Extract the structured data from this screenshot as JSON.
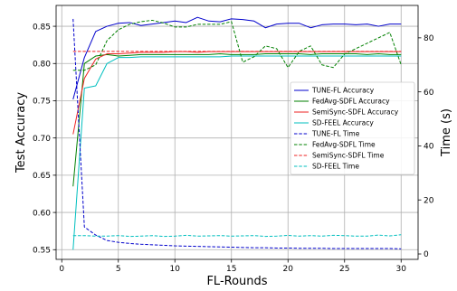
{
  "chart_data": {
    "type": "line",
    "title": "",
    "xlabel": "FL-Rounds",
    "ylabel": "Test Accuracy",
    "y2label": "Time (s)",
    "grid": true,
    "legend_position": "right",
    "xlim": [
      -0.5,
      31.5
    ],
    "ylim": [
      0.537,
      0.878
    ],
    "y2lim": [
      -2,
      92
    ],
    "xticks": [
      0,
      5,
      10,
      15,
      20,
      25,
      30
    ],
    "yticks": [
      0.55,
      0.6,
      0.65,
      0.7,
      0.75,
      0.8,
      0.85
    ],
    "ytick_labels": [
      "0.55",
      "0.60",
      "0.65",
      "0.70",
      "0.75",
      "0.80",
      "0.85"
    ],
    "y2ticks": [
      0,
      20,
      40,
      60,
      80
    ],
    "x": [
      1,
      2,
      3,
      4,
      5,
      6,
      7,
      8,
      9,
      10,
      11,
      12,
      13,
      14,
      15,
      16,
      17,
      18,
      19,
      20,
      21,
      22,
      23,
      24,
      25,
      26,
      27,
      28,
      29,
      30
    ],
    "series": [
      {
        "name": "TUNE-FL Accuracy",
        "axis": "left",
        "color": "#0000cc",
        "dash": "solid",
        "values": [
          0.752,
          0.808,
          0.843,
          0.85,
          0.854,
          0.855,
          0.851,
          0.853,
          0.855,
          0.857,
          0.855,
          0.862,
          0.857,
          0.856,
          0.86,
          0.859,
          0.857,
          0.848,
          0.853,
          0.854,
          0.854,
          0.848,
          0.852,
          0.853,
          0.853,
          0.852,
          0.853,
          0.85,
          0.853,
          0.853
        ]
      },
      {
        "name": "FedAvg-SDFL Accuracy",
        "axis": "left",
        "color": "#008000",
        "dash": "solid",
        "values": [
          0.635,
          0.8,
          0.81,
          0.812,
          0.81,
          0.811,
          0.812,
          0.812,
          0.812,
          0.812,
          0.812,
          0.812,
          0.812,
          0.813,
          0.812,
          0.812,
          0.812,
          0.813,
          0.813,
          0.813,
          0.813,
          0.812,
          0.813,
          0.813,
          0.813,
          0.813,
          0.812,
          0.813,
          0.812,
          0.812
        ]
      },
      {
        "name": "SemiSync-SDFL Accuracy",
        "axis": "left",
        "color": "#ee2222",
        "dash": "solid",
        "values": [
          0.705,
          0.78,
          0.806,
          0.813,
          0.813,
          0.814,
          0.815,
          0.815,
          0.815,
          0.816,
          0.816,
          0.815,
          0.816,
          0.816,
          0.816,
          0.816,
          0.816,
          0.816,
          0.816,
          0.816,
          0.816,
          0.816,
          0.816,
          0.816,
          0.816,
          0.816,
          0.816,
          0.816,
          0.816,
          0.816
        ]
      },
      {
        "name": "SD-FEEL Accuracy",
        "axis": "left",
        "color": "#00bfbf",
        "dash": "solid",
        "values": [
          0.55,
          0.767,
          0.77,
          0.8,
          0.808,
          0.808,
          0.809,
          0.809,
          0.809,
          0.809,
          0.809,
          0.809,
          0.809,
          0.809,
          0.81,
          0.81,
          0.81,
          0.81,
          0.81,
          0.81,
          0.81,
          0.81,
          0.81,
          0.81,
          0.81,
          0.81,
          0.81,
          0.81,
          0.81,
          0.81
        ]
      },
      {
        "name": "TUNE-FL Time",
        "axis": "right",
        "color": "#0000cc",
        "dash": "dashed",
        "values": [
          87.0,
          10.0,
          7.0,
          5.0,
          4.3,
          3.9,
          3.6,
          3.4,
          3.2,
          3.0,
          2.9,
          2.8,
          2.7,
          2.6,
          2.5,
          2.4,
          2.3,
          2.3,
          2.2,
          2.2,
          2.1,
          2.1,
          2.1,
          2.0,
          2.0,
          2.0,
          2.0,
          2.0,
          2.0,
          1.9
        ]
      },
      {
        "name": "FedAvg-SDFL Time",
        "axis": "right",
        "color": "#008000",
        "dash": "dashed",
        "values": [
          68.0,
          68.0,
          70.0,
          79.0,
          83.0,
          85.0,
          86.0,
          86.5,
          85.5,
          84.0,
          84.0,
          85.0,
          85.0,
          85.0,
          86.0,
          71.0,
          73.0,
          77.0,
          76.0,
          69.0,
          75.0,
          77.0,
          70.0,
          69.0,
          74.0,
          76.0,
          78.0,
          80.0,
          82.0,
          70.0
        ]
      },
      {
        "name": "SemiSync-SDFL Time",
        "axis": "right",
        "color": "#ee2222",
        "dash": "dashed",
        "values": [
          75.0,
          75.0,
          75.0,
          75.0,
          75.0,
          75.0,
          75.0,
          75.0,
          75.0,
          75.0,
          75.0,
          75.0,
          75.0,
          75.0,
          75.0,
          75.0,
          75.0,
          75.0,
          75.0,
          75.0,
          75.0,
          75.0,
          75.0,
          75.0,
          75.0,
          75.0,
          75.0,
          75.0,
          75.0,
          75.0
        ]
      },
      {
        "name": "SD-FEEL Time",
        "axis": "right",
        "color": "#00bfbf",
        "dash": "dashed",
        "values": [
          6.8,
          6.8,
          6.6,
          6.6,
          6.8,
          6.5,
          6.6,
          6.8,
          6.5,
          6.6,
          6.9,
          6.6,
          6.7,
          6.8,
          6.6,
          6.7,
          6.8,
          6.5,
          6.6,
          6.9,
          6.6,
          6.8,
          6.6,
          6.9,
          6.8,
          6.6,
          6.6,
          7.0,
          6.7,
          7.1
        ]
      }
    ]
  }
}
